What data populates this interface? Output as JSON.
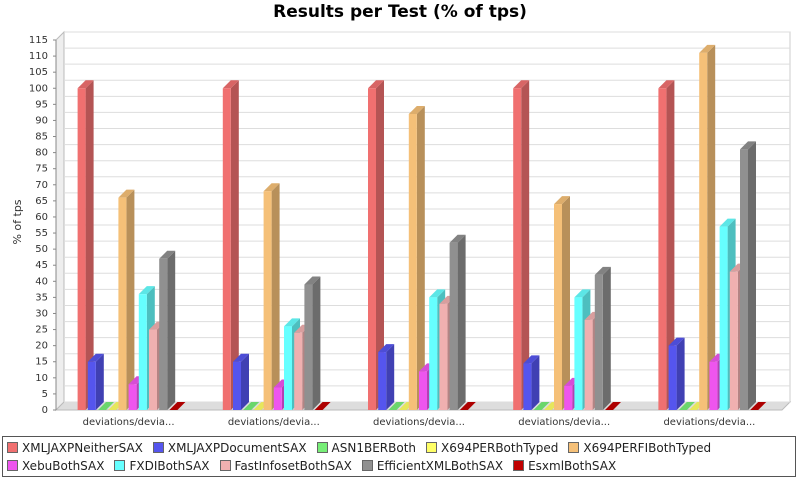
{
  "chart_data": {
    "type": "bar3d",
    "title": "Results per Test (% of tps)",
    "y_label": "% of tps",
    "categories": [
      "deviations/devia...",
      "deviations/devia...",
      "deviations/devia...",
      "deviations/devia...",
      "deviations/devia..."
    ],
    "series": [
      {
        "name": "XMLJAXPNeitherSAX",
        "color": "#f07070",
        "values": [
          100,
          100,
          100,
          100,
          100
        ]
      },
      {
        "name": "XMLJAXPDocumentSAX",
        "color": "#5555ee",
        "values": [
          15,
          15,
          18,
          14.5,
          20
        ]
      },
      {
        "name": "ASN1BERBoth",
        "color": "#77ee77",
        "values": [
          0,
          0,
          0,
          0,
          0
        ]
      },
      {
        "name": "X694PERBothTyped",
        "color": "#ffff66",
        "values": [
          0,
          0,
          0,
          0,
          0
        ]
      },
      {
        "name": "X694PERFIBothTyped",
        "color": "#f5c078",
        "values": [
          66,
          68,
          92,
          64,
          111
        ]
      },
      {
        "name": "XebuBothSAX",
        "color": "#ee55ee",
        "values": [
          8,
          7,
          12,
          7.5,
          15
        ]
      },
      {
        "name": "FXDIBothSAX",
        "color": "#66ffff",
        "values": [
          36,
          26,
          35,
          35,
          57
        ]
      },
      {
        "name": "FastInfosetBothSAX",
        "color": "#f0b0b0",
        "values": [
          25,
          24,
          33,
          28,
          43
        ]
      },
      {
        "name": "EfficientXMLBothSAX",
        "color": "#909090",
        "values": [
          47,
          39,
          52,
          42,
          81
        ]
      },
      {
        "name": "EsxmlBothSAX",
        "color": "#c00000",
        "values": [
          0,
          0,
          0,
          0,
          0
        ]
      }
    ],
    "ylim": [
      0,
      115
    ],
    "yticks": [
      0,
      5,
      10,
      15,
      20,
      25,
      30,
      35,
      40,
      45,
      50,
      55,
      60,
      65,
      70,
      75,
      80,
      85,
      90,
      95,
      100,
      105,
      110,
      115
    ],
    "grid": true
  }
}
